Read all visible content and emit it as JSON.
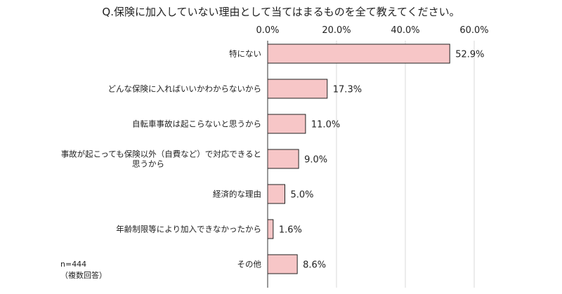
{
  "chart_data": {
    "type": "bar",
    "orientation": "horizontal",
    "title": "Q.保険に加入していない理由として当てはまるものを全て教えてください。",
    "categories": [
      [
        "特にない"
      ],
      [
        "どんな保険に入ればいいかわからないから"
      ],
      [
        "自転車事故は起こらないと思うから"
      ],
      [
        "事故が起こっても保険以外（自費など）で対応できると",
        "思うから"
      ],
      [
        "経済的な理由"
      ],
      [
        "年齢制限等により加入できなかったから"
      ],
      [
        "その他"
      ]
    ],
    "values": [
      52.9,
      17.3,
      11.0,
      9.0,
      5.0,
      1.6,
      8.6
    ],
    "value_labels": [
      "52.9%",
      "17.3%",
      "11.0%",
      "9.0%",
      "5.0%",
      "1.6%",
      "8.6%"
    ],
    "xlim": [
      0,
      60
    ],
    "xticks": [
      0,
      20,
      40,
      60
    ],
    "xtick_labels": [
      "0.0%",
      "20.0%",
      "40.0%",
      "60.0%"
    ],
    "x_axis_position": "top",
    "grid": true,
    "legend": "none",
    "bar_color": "#f7c6c7",
    "bar_edge_color": "#222222"
  },
  "notes": {
    "sample_size": "n=444",
    "answer_type": "（複数回答）"
  }
}
